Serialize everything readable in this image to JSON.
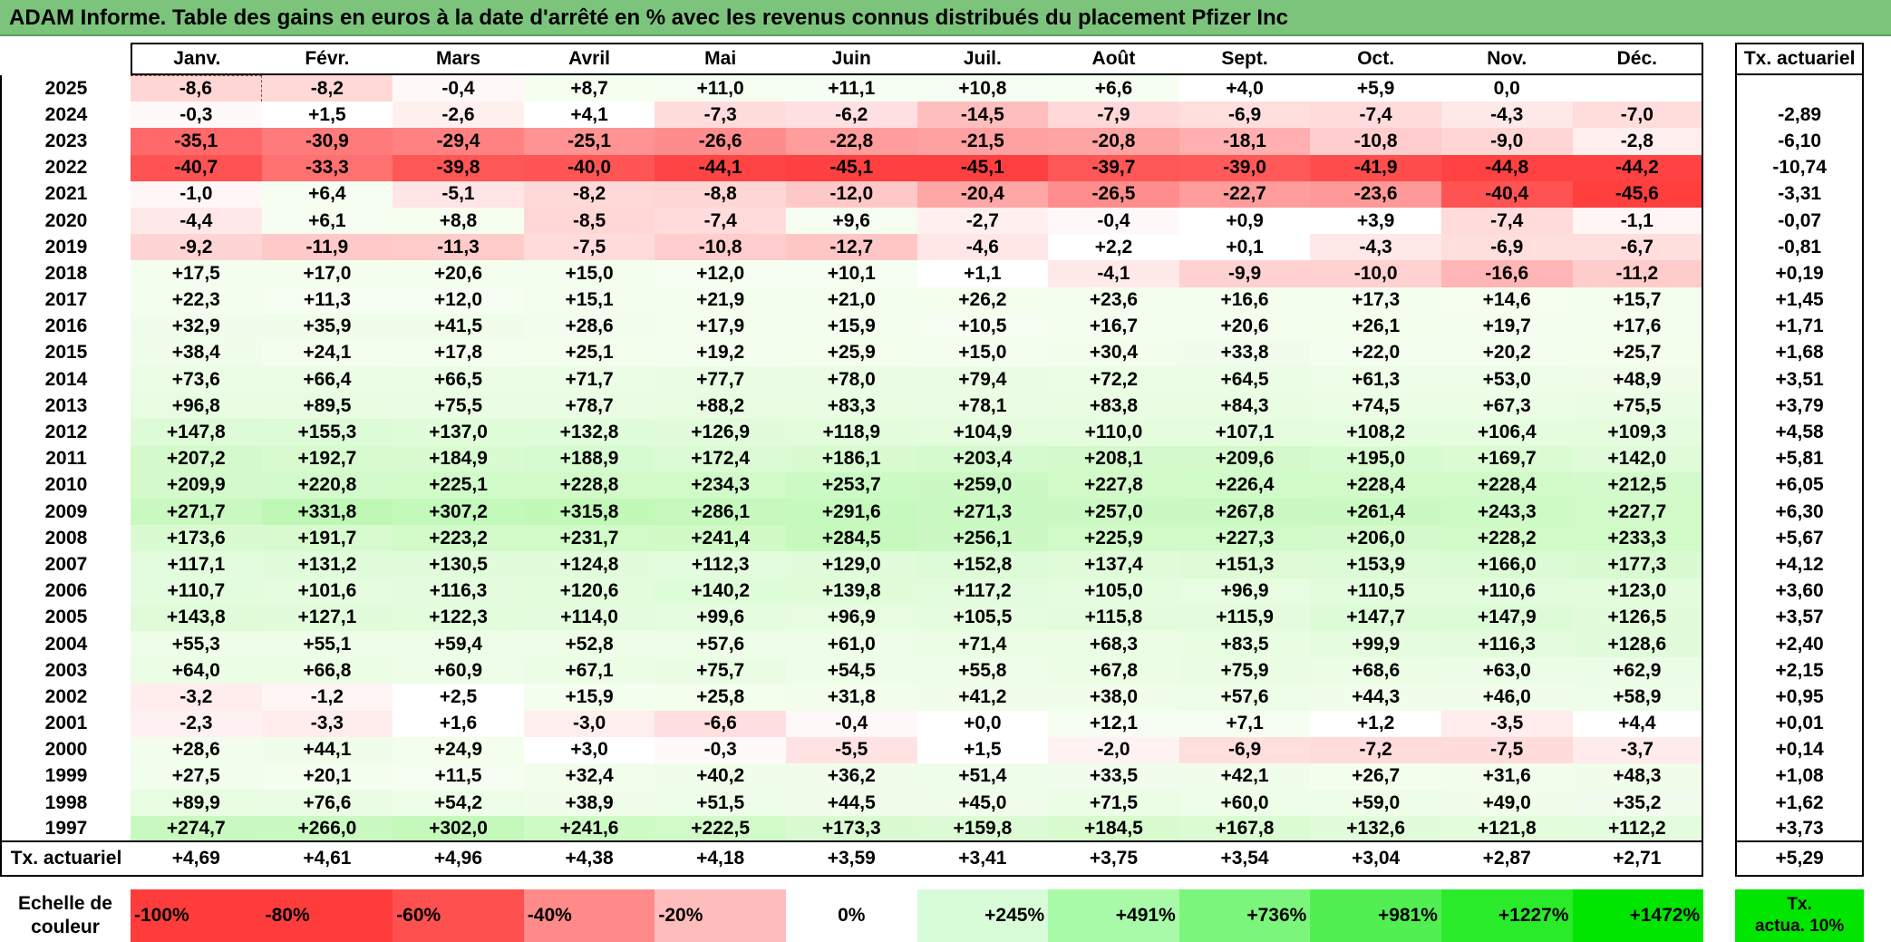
{
  "title": "ADAM Informe. Table des gains en euros à la date d'arrêté en % avec les revenus connus distribués du placement Pfizer Inc",
  "months": [
    "Janv.",
    "Févr.",
    "Mars",
    "Avril",
    "Mai",
    "Juin",
    "Juil.",
    "Août",
    "Sept.",
    "Oct.",
    "Nov.",
    "Déc."
  ],
  "annual_header": "Tx. actuariel",
  "rows": [
    {
      "year": "2025",
      "values": [
        "-8,6",
        "-8,2",
        "-0,4",
        "+8,7",
        "+11,0",
        "+11,1",
        "+10,8",
        "+6,6",
        "+4,0",
        "+5,9",
        "0,0",
        ""
      ],
      "annual": ""
    },
    {
      "year": "2024",
      "values": [
        "-0,3",
        "+1,5",
        "-2,6",
        "+4,1",
        "-7,3",
        "-6,2",
        "-14,5",
        "-7,9",
        "-6,9",
        "-7,4",
        "-4,3",
        "-7,0"
      ],
      "annual": "-2,89"
    },
    {
      "year": "2023",
      "values": [
        "-35,1",
        "-30,9",
        "-29,4",
        "-25,1",
        "-26,6",
        "-22,8",
        "-21,5",
        "-20,8",
        "-18,1",
        "-10,8",
        "-9,0",
        "-2,8"
      ],
      "annual": "-6,10"
    },
    {
      "year": "2022",
      "values": [
        "-40,7",
        "-33,3",
        "-39,8",
        "-40,0",
        "-44,1",
        "-45,1",
        "-45,1",
        "-39,7",
        "-39,0",
        "-41,9",
        "-44,8",
        "-44,2"
      ],
      "annual": "-10,74"
    },
    {
      "year": "2021",
      "values": [
        "-1,0",
        "+6,4",
        "-5,1",
        "-8,2",
        "-8,8",
        "-12,0",
        "-20,4",
        "-26,5",
        "-22,7",
        "-23,6",
        "-40,4",
        "-45,6"
      ],
      "annual": "-3,31"
    },
    {
      "year": "2020",
      "values": [
        "-4,4",
        "+6,1",
        "+8,8",
        "-8,5",
        "-7,4",
        "+9,6",
        "-2,7",
        "-0,4",
        "+0,9",
        "+3,9",
        "-7,4",
        "-1,1"
      ],
      "annual": "-0,07"
    },
    {
      "year": "2019",
      "values": [
        "-9,2",
        "-11,9",
        "-11,3",
        "-7,5",
        "-10,8",
        "-12,7",
        "-4,6",
        "+2,2",
        "+0,1",
        "-4,3",
        "-6,9",
        "-6,7"
      ],
      "annual": "-0,81"
    },
    {
      "year": "2018",
      "values": [
        "+17,5",
        "+17,0",
        "+20,6",
        "+15,0",
        "+12,0",
        "+10,1",
        "+1,1",
        "-4,1",
        "-9,9",
        "-10,0",
        "-16,6",
        "-11,2"
      ],
      "annual": "+0,19"
    },
    {
      "year": "2017",
      "values": [
        "+22,3",
        "+11,3",
        "+12,0",
        "+15,1",
        "+21,9",
        "+21,0",
        "+26,2",
        "+23,6",
        "+16,6",
        "+17,3",
        "+14,6",
        "+15,7"
      ],
      "annual": "+1,45"
    },
    {
      "year": "2016",
      "values": [
        "+32,9",
        "+35,9",
        "+41,5",
        "+28,6",
        "+17,9",
        "+15,9",
        "+10,5",
        "+16,7",
        "+20,6",
        "+26,1",
        "+19,7",
        "+17,6"
      ],
      "annual": "+1,71"
    },
    {
      "year": "2015",
      "values": [
        "+38,4",
        "+24,1",
        "+17,8",
        "+25,1",
        "+19,2",
        "+25,9",
        "+15,0",
        "+30,4",
        "+33,8",
        "+22,0",
        "+20,2",
        "+25,7"
      ],
      "annual": "+1,68"
    },
    {
      "year": "2014",
      "values": [
        "+73,6",
        "+66,4",
        "+66,5",
        "+71,7",
        "+77,7",
        "+78,0",
        "+79,4",
        "+72,2",
        "+64,5",
        "+61,3",
        "+53,0",
        "+48,9"
      ],
      "annual": "+3,51"
    },
    {
      "year": "2013",
      "values": [
        "+96,8",
        "+89,5",
        "+75,5",
        "+78,7",
        "+88,2",
        "+83,3",
        "+78,1",
        "+83,8",
        "+84,3",
        "+74,5",
        "+67,3",
        "+75,5"
      ],
      "annual": "+3,79"
    },
    {
      "year": "2012",
      "values": [
        "+147,8",
        "+155,3",
        "+137,0",
        "+132,8",
        "+126,9",
        "+118,9",
        "+104,9",
        "+110,0",
        "+107,1",
        "+108,2",
        "+106,4",
        "+109,3"
      ],
      "annual": "+4,58"
    },
    {
      "year": "2011",
      "values": [
        "+207,2",
        "+192,7",
        "+184,9",
        "+188,9",
        "+172,4",
        "+186,1",
        "+203,4",
        "+208,1",
        "+209,6",
        "+195,0",
        "+169,7",
        "+142,0"
      ],
      "annual": "+5,81"
    },
    {
      "year": "2010",
      "values": [
        "+209,9",
        "+220,8",
        "+225,1",
        "+228,8",
        "+234,3",
        "+253,7",
        "+259,0",
        "+227,8",
        "+226,4",
        "+228,4",
        "+228,4",
        "+212,5"
      ],
      "annual": "+6,05"
    },
    {
      "year": "2009",
      "values": [
        "+271,7",
        "+331,8",
        "+307,2",
        "+315,8",
        "+286,1",
        "+291,6",
        "+271,3",
        "+257,0",
        "+267,8",
        "+261,4",
        "+243,3",
        "+227,7"
      ],
      "annual": "+6,30"
    },
    {
      "year": "2008",
      "values": [
        "+173,6",
        "+191,7",
        "+223,2",
        "+231,7",
        "+241,4",
        "+284,5",
        "+256,1",
        "+225,9",
        "+227,3",
        "+206,0",
        "+228,2",
        "+233,3"
      ],
      "annual": "+5,67"
    },
    {
      "year": "2007",
      "values": [
        "+117,1",
        "+131,2",
        "+130,5",
        "+124,8",
        "+112,3",
        "+129,0",
        "+152,8",
        "+137,4",
        "+151,3",
        "+153,9",
        "+166,0",
        "+177,3"
      ],
      "annual": "+4,12"
    },
    {
      "year": "2006",
      "values": [
        "+110,7",
        "+101,6",
        "+116,3",
        "+120,6",
        "+140,2",
        "+139,8",
        "+117,2",
        "+105,0",
        "+96,9",
        "+110,5",
        "+110,6",
        "+123,0"
      ],
      "annual": "+3,60"
    },
    {
      "year": "2005",
      "values": [
        "+143,8",
        "+127,1",
        "+122,3",
        "+114,0",
        "+99,6",
        "+96,9",
        "+105,5",
        "+115,8",
        "+115,9",
        "+147,7",
        "+147,9",
        "+126,5"
      ],
      "annual": "+3,57"
    },
    {
      "year": "2004",
      "values": [
        "+55,3",
        "+55,1",
        "+59,4",
        "+52,8",
        "+57,6",
        "+61,0",
        "+71,4",
        "+68,3",
        "+83,5",
        "+99,9",
        "+116,3",
        "+128,6"
      ],
      "annual": "+2,40"
    },
    {
      "year": "2003",
      "values": [
        "+64,0",
        "+66,8",
        "+60,9",
        "+67,1",
        "+75,7",
        "+54,5",
        "+55,8",
        "+67,8",
        "+75,9",
        "+68,6",
        "+63,0",
        "+62,9"
      ],
      "annual": "+2,15"
    },
    {
      "year": "2002",
      "values": [
        "-3,2",
        "-1,2",
        "+2,5",
        "+15,9",
        "+25,8",
        "+31,8",
        "+41,2",
        "+38,0",
        "+57,6",
        "+44,3",
        "+46,0",
        "+58,9"
      ],
      "annual": "+0,95"
    },
    {
      "year": "2001",
      "values": [
        "-2,3",
        "-3,3",
        "+1,6",
        "-3,0",
        "-6,6",
        "-0,4",
        "+0,0",
        "+12,1",
        "+7,1",
        "+1,2",
        "-3,5",
        "+4,4"
      ],
      "annual": "+0,01"
    },
    {
      "year": "2000",
      "values": [
        "+28,6",
        "+44,1",
        "+24,9",
        "+3,0",
        "-0,3",
        "-5,5",
        "+1,5",
        "-2,0",
        "-6,9",
        "-7,2",
        "-7,5",
        "-3,7"
      ],
      "annual": "+0,14"
    },
    {
      "year": "1999",
      "values": [
        "+27,5",
        "+20,1",
        "+11,5",
        "+32,4",
        "+40,2",
        "+36,2",
        "+51,4",
        "+33,5",
        "+42,1",
        "+26,7",
        "+31,6",
        "+48,3"
      ],
      "annual": "+1,08"
    },
    {
      "year": "1998",
      "values": [
        "+89,9",
        "+76,6",
        "+54,2",
        "+38,9",
        "+51,5",
        "+44,5",
        "+45,0",
        "+71,5",
        "+60,0",
        "+59,0",
        "+49,0",
        "+35,2"
      ],
      "annual": "+1,62"
    },
    {
      "year": "1997",
      "values": [
        "+274,7",
        "+266,0",
        "+302,0",
        "+241,6",
        "+222,5",
        "+173,3",
        "+159,8",
        "+184,5",
        "+167,8",
        "+132,6",
        "+121,8",
        "+112,2"
      ],
      "annual": "+3,73"
    }
  ],
  "totals": {
    "label": "Tx. actuariel",
    "values": [
      "+4,69",
      "+4,61",
      "+4,96",
      "+4,38",
      "+4,18",
      "+3,59",
      "+3,41",
      "+3,75",
      "+3,54",
      "+3,04",
      "+2,87",
      "+2,71"
    ],
    "annual": "+5,29"
  },
  "scale": {
    "label_line1": "Echelle de",
    "label_line2": "couleur",
    "items": [
      {
        "text": "-100%",
        "color": "#ff3c3c",
        "align": "left"
      },
      {
        "text": "-80%",
        "color": "#ff3c3c",
        "align": "left"
      },
      {
        "text": "-60%",
        "color": "#ff5050",
        "align": "left"
      },
      {
        "text": "-40%",
        "color": "#ff8a8a",
        "align": "left"
      },
      {
        "text": "-20%",
        "color": "#ffbcbc",
        "align": "left"
      },
      {
        "text": "0%",
        "color": "#ffffff",
        "align": "center"
      },
      {
        "text": "+245%",
        "color": "#d8fcd8",
        "align": "right"
      },
      {
        "text": "+491%",
        "color": "#a8faa8",
        "align": "right"
      },
      {
        "text": "+736%",
        "color": "#7cf57c",
        "align": "right"
      },
      {
        "text": "+981%",
        "color": "#52ef52",
        "align": "right"
      },
      {
        "text": "+1227%",
        "color": "#2aeb2a",
        "align": "right"
      },
      {
        "text": "+1472%",
        "color": "#00e600",
        "align": "right"
      }
    ],
    "annual_line1": "Tx.",
    "annual_line2": "actua. 10%",
    "annual_color": "#00e600"
  }
}
